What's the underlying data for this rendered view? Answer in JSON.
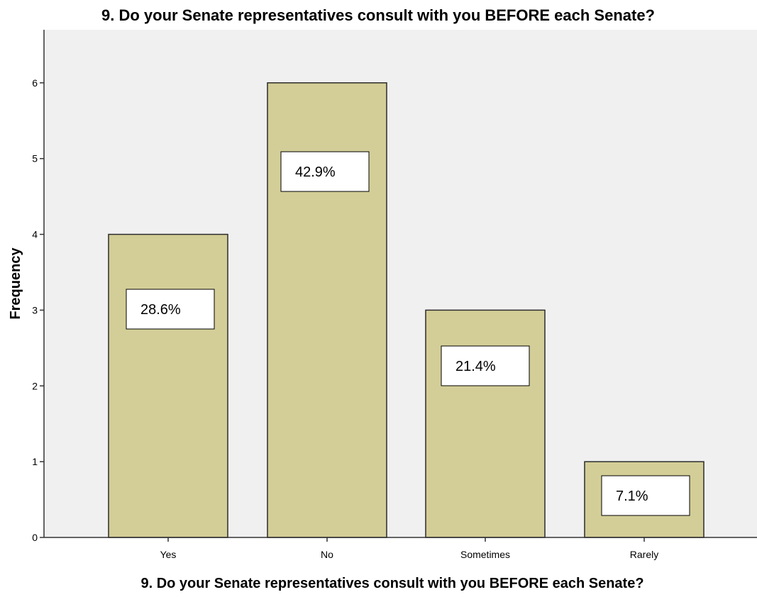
{
  "chart_data": {
    "type": "bar",
    "title": "9. Do your Senate representatives consult with you BEFORE each Senate?",
    "xlabel": "9. Do your Senate representatives consult with you BEFORE each Senate?",
    "ylabel": "Frequency",
    "categories": [
      "Yes",
      "No",
      "Sometimes",
      "Rarely"
    ],
    "values": [
      4,
      6,
      3,
      1
    ],
    "data_labels": [
      "28.6%",
      "42.9%",
      "21.4%",
      "7.1%"
    ],
    "ylim": [
      0,
      6.7
    ],
    "yticks": [
      "0",
      "1",
      "2",
      "3",
      "4",
      "5",
      "6"
    ],
    "grid": false,
    "colors": {
      "plot_background": "#f0f0f0",
      "bar_fill": "#d3ce97",
      "bar_stroke": "#2b2b2b",
      "label_box_fill": "#ffffff",
      "label_box_stroke": "#000000"
    }
  }
}
